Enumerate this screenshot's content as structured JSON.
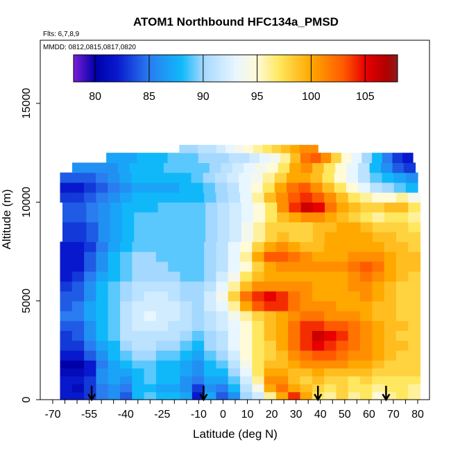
{
  "chart_data": {
    "type": "heatmap",
    "title": "ATOM1 Northbound HFC134a_PMSD",
    "flights_note": "Flts: 6,7,8,9",
    "dates_note": "MMDD: 0812,0815,0817,0820",
    "xlabel": "Latitude (deg N)",
    "ylabel": "Altitude (m)",
    "xlim": [
      -70,
      80
    ],
    "ylim": [
      0,
      17500
    ],
    "x_ticks": [
      -70,
      -55,
      -40,
      -25,
      -10,
      0,
      10,
      20,
      30,
      40,
      50,
      60,
      70,
      80
    ],
    "y_ticks": [
      0,
      5000,
      10000,
      15000
    ],
    "colorbar": {
      "min": 78,
      "max": 108,
      "ticks": [
        80,
        85,
        90,
        95,
        100,
        105
      ],
      "stops": [
        {
          "v": 78,
          "c": "#7a1fd6"
        },
        {
          "v": 80,
          "c": "#0000a8"
        },
        {
          "v": 82,
          "c": "#0818cc"
        },
        {
          "v": 85,
          "c": "#2a7cf0"
        },
        {
          "v": 88,
          "c": "#10b8fa"
        },
        {
          "v": 90,
          "c": "#a4d8ff"
        },
        {
          "v": 93,
          "c": "#e8f6ff"
        },
        {
          "v": 95,
          "c": "#fffad8"
        },
        {
          "v": 97,
          "c": "#ffe860"
        },
        {
          "v": 100,
          "c": "#ffa800"
        },
        {
          "v": 103,
          "c": "#ff5a00"
        },
        {
          "v": 105,
          "c": "#e80000"
        },
        {
          "v": 107,
          "c": "#b00000"
        },
        {
          "v": 108,
          "c": "#8a1e1e"
        }
      ]
    },
    "arrow_latitudes": [
      -54,
      -8,
      39,
      67
    ],
    "altitude_bands": [
      {
        "alt": 0,
        "lat_start": -67,
        "lat_end": 81,
        "values": [
          82,
          82,
          83,
          85,
          86,
          84,
          88,
          89,
          88,
          88,
          87,
          82,
          87,
          84,
          86,
          90,
          92,
          96,
          100,
          104,
          100,
          97,
          96,
          98,
          96,
          97,
          95,
          96,
          97,
          96
        ]
      },
      {
        "alt": 400,
        "lat_start": -67,
        "lat_end": 81,
        "values": [
          82,
          81,
          83,
          85,
          86,
          85,
          88,
          88,
          87,
          87,
          86,
          83,
          86,
          85,
          88,
          91,
          94,
          100,
          102,
          100,
          99,
          98,
          97,
          98,
          97,
          97,
          96,
          97,
          97,
          96
        ]
      },
      {
        "alt": 800,
        "lat_start": -67,
        "lat_end": 81,
        "values": [
          82,
          82,
          83,
          86,
          87,
          86,
          88,
          89,
          88,
          88,
          86,
          85,
          87,
          87,
          89,
          92,
          96,
          101,
          101,
          99,
          98,
          99,
          98,
          98,
          97,
          98,
          97,
          97,
          97,
          97
        ]
      },
      {
        "alt": 1200,
        "lat_start": -67,
        "lat_end": 81,
        "values": [
          81,
          81,
          82,
          86,
          87,
          87,
          88,
          89,
          88,
          88,
          87,
          86,
          88,
          88,
          90,
          93,
          97,
          100,
          100,
          99,
          99,
          100,
          99,
          99,
          99,
          99,
          98,
          98,
          98,
          98
        ]
      },
      {
        "alt": 1600,
        "lat_start": -67,
        "lat_end": 81,
        "values": [
          80,
          80,
          82,
          85,
          87,
          88,
          89,
          89,
          88,
          88,
          87,
          86,
          88,
          89,
          91,
          94,
          97,
          99,
          99,
          100,
          101,
          101,
          101,
          101,
          100,
          100,
          99,
          98,
          98,
          98
        ]
      },
      {
        "alt": 2000,
        "lat_start": -67,
        "lat_end": 81,
        "values": [
          82,
          82,
          84,
          86,
          88,
          89,
          90,
          90,
          89,
          89,
          88,
          87,
          89,
          90,
          92,
          95,
          97,
          98,
          99,
          101,
          102,
          103,
          103,
          102,
          101,
          101,
          100,
          99,
          98,
          98
        ]
      },
      {
        "alt": 2500,
        "lat_start": -67,
        "lat_end": 81,
        "values": [
          83,
          83,
          85,
          87,
          88,
          90,
          91,
          91,
          90,
          90,
          89,
          88,
          90,
          91,
          93,
          95,
          97,
          98,
          100,
          102,
          104,
          105,
          104,
          103,
          102,
          101,
          100,
          99,
          99,
          98
        ]
      },
      {
        "alt": 3000,
        "lat_start": -67,
        "lat_end": 81,
        "values": [
          83,
          84,
          86,
          88,
          89,
          91,
          91,
          91,
          91,
          91,
          90,
          89,
          90,
          91,
          93,
          95,
          97,
          99,
          100,
          102,
          104,
          106,
          105,
          104,
          102,
          101,
          100,
          99,
          98,
          98
        ]
      },
      {
        "alt": 3500,
        "lat_start": -67,
        "lat_end": 81,
        "values": [
          84,
          84,
          86,
          88,
          89,
          91,
          92,
          92,
          92,
          91,
          91,
          90,
          91,
          92,
          93,
          95,
          97,
          99,
          100,
          102,
          104,
          104,
          103,
          103,
          102,
          101,
          100,
          99,
          99,
          98
        ]
      },
      {
        "alt": 4000,
        "lat_start": -67,
        "lat_end": 81,
        "values": [
          85,
          85,
          87,
          88,
          89,
          91,
          92,
          93,
          92,
          92,
          91,
          90,
          91,
          92,
          94,
          96,
          98,
          99,
          100,
          101,
          102,
          102,
          101,
          101,
          101,
          100,
          99,
          99,
          98,
          98
        ]
      },
      {
        "alt": 4500,
        "lat_start": -67,
        "lat_end": 81,
        "values": [
          84,
          85,
          87,
          88,
          89,
          91,
          92,
          92,
          92,
          92,
          91,
          90,
          92,
          93,
          96,
          100,
          103,
          104,
          104,
          102,
          101,
          101,
          101,
          100,
          100,
          100,
          99,
          99,
          98,
          98
        ]
      },
      {
        "alt": 5000,
        "lat_start": -67,
        "lat_end": 81,
        "values": [
          84,
          84,
          86,
          88,
          89,
          90,
          91,
          92,
          92,
          91,
          90,
          90,
          92,
          94,
          98,
          102,
          104,
          105,
          104,
          102,
          101,
          100,
          100,
          100,
          100,
          101,
          100,
          99,
          98,
          98
        ]
      },
      {
        "alt": 5500,
        "lat_start": -67,
        "lat_end": 81,
        "values": [
          83,
          84,
          86,
          88,
          89,
          90,
          91,
          91,
          91,
          91,
          90,
          90,
          91,
          93,
          96,
          99,
          101,
          101,
          101,
          101,
          101,
          100,
          100,
          100,
          101,
          101,
          100,
          99,
          98,
          98
        ]
      },
      {
        "alt": 6000,
        "lat_start": -67,
        "lat_end": 81,
        "values": [
          82,
          83,
          85,
          87,
          88,
          89,
          90,
          90,
          90,
          90,
          89,
          89,
          90,
          92,
          94,
          97,
          99,
          100,
          100,
          100,
          100,
          100,
          100,
          100,
          101,
          102,
          101,
          100,
          99,
          98
        ]
      },
      {
        "alt": 6500,
        "lat_start": -67,
        "lat_end": 81,
        "values": [
          82,
          82,
          84,
          86,
          88,
          89,
          90,
          90,
          90,
          89,
          89,
          89,
          90,
          91,
          93,
          95,
          98,
          100,
          101,
          101,
          101,
          101,
          101,
          101,
          102,
          103,
          102,
          100,
          99,
          99
        ]
      },
      {
        "alt": 7000,
        "lat_start": -67,
        "lat_end": 81,
        "values": [
          82,
          82,
          84,
          86,
          88,
          89,
          90,
          90,
          89,
          89,
          89,
          89,
          90,
          91,
          93,
          96,
          100,
          103,
          103,
          102,
          101,
          100,
          100,
          100,
          101,
          101,
          101,
          100,
          99,
          99
        ]
      },
      {
        "alt": 7500,
        "lat_start": -67,
        "lat_end": 81,
        "values": [
          82,
          82,
          83,
          85,
          87,
          88,
          89,
          89,
          89,
          89,
          89,
          89,
          90,
          91,
          93,
          95,
          98,
          100,
          101,
          100,
          99,
          99,
          100,
          100,
          100,
          100,
          100,
          99,
          99,
          98
        ]
      },
      {
        "alt": 8000,
        "lat_start": -66,
        "lat_end": 81,
        "values": [
          83,
          83,
          84,
          86,
          87,
          88,
          89,
          89,
          89,
          89,
          89,
          89,
          90,
          91,
          92,
          94,
          96,
          98,
          99,
          98,
          98,
          99,
          100,
          100,
          100,
          100,
          99,
          99,
          98,
          98
        ]
      },
      {
        "alt": 8500,
        "lat_start": -66,
        "lat_end": 81,
        "values": [
          83,
          83,
          84,
          86,
          87,
          88,
          89,
          89,
          89,
          89,
          89,
          89,
          90,
          91,
          92,
          94,
          96,
          98,
          98,
          98,
          98,
          99,
          99,
          100,
          100,
          99,
          98,
          98,
          98,
          97
        ]
      },
      {
        "alt": 9000,
        "lat_start": -66,
        "lat_end": 81,
        "values": [
          84,
          84,
          85,
          86,
          87,
          88,
          89,
          89,
          89,
          89,
          89,
          89,
          90,
          91,
          92,
          93,
          95,
          97,
          99,
          100,
          101,
          101,
          100,
          99,
          98,
          97,
          96,
          97,
          97,
          96
        ]
      },
      {
        "alt": 9500,
        "lat_start": -66,
        "lat_end": 81,
        "values": [
          84,
          84,
          85,
          86,
          87,
          88,
          88,
          88,
          89,
          89,
          89,
          89,
          90,
          91,
          92,
          93,
          95,
          97,
          101,
          104,
          106,
          105,
          102,
          100,
          99,
          98,
          98,
          99,
          99,
          97
        ]
      },
      {
        "alt": 10000,
        "lat_start": -67,
        "lat_end": 81,
        "values": [
          83,
          83,
          84,
          85,
          86,
          87,
          88,
          88,
          88,
          88,
          88,
          88,
          89,
          90,
          91,
          93,
          96,
          99,
          101,
          103,
          104,
          103,
          101,
          99,
          97,
          96,
          95,
          95,
          96,
          94
        ]
      },
      {
        "alt": 10500,
        "lat_start": -67,
        "lat_end": 80,
        "values": [
          82,
          82,
          83,
          84,
          85,
          86,
          87,
          87,
          87,
          87,
          88,
          88,
          89,
          90,
          91,
          93,
          95,
          97,
          100,
          102,
          103,
          101,
          99,
          97,
          95,
          93,
          91,
          90,
          89,
          88
        ]
      },
      {
        "alt": 11000,
        "lat_start": -67,
        "lat_end": 80,
        "values": [
          84,
          84,
          84,
          85,
          86,
          87,
          88,
          88,
          88,
          88,
          88,
          89,
          90,
          91,
          92,
          93,
          94,
          96,
          98,
          100,
          100,
          99,
          97,
          95,
          93,
          91,
          89,
          88,
          87,
          86
        ]
      },
      {
        "alt": 11500,
        "lat_start": -62,
        "lat_end": 79,
        "values": [
          86,
          86,
          86,
          86,
          87,
          88,
          88,
          88,
          89,
          89,
          89,
          89,
          90,
          91,
          92,
          93,
          94,
          95,
          97,
          100,
          101,
          99,
          97,
          95,
          93,
          91,
          88,
          86,
          84,
          83
        ]
      },
      {
        "alt": 12000,
        "lat_start": -48,
        "lat_end": 78,
        "values": [
          87,
          87,
          87,
          88,
          88,
          88,
          89,
          89,
          89,
          90,
          90,
          90,
          91,
          91,
          92,
          93,
          94,
          96,
          99,
          102,
          103,
          101,
          98,
          95,
          93,
          90,
          88,
          85,
          83,
          82
        ]
      },
      {
        "alt": 12500,
        "lat_start": -18,
        "lat_end": 39,
        "values": [
          90,
          90,
          91,
          91,
          92,
          93,
          94,
          95,
          96,
          97,
          98,
          99,
          100,
          101,
          101
        ]
      }
    ]
  }
}
